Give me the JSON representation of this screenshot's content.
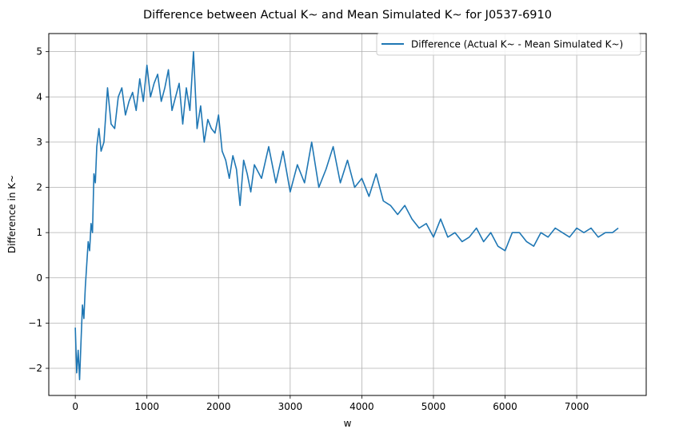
{
  "chart_data": {
    "type": "line",
    "title": "Difference between Actual K~ and Mean Simulated K~ for J0537-6910",
    "xlabel": "w",
    "ylabel": "Difference in K~",
    "xlim": [
      -370,
      7970
    ],
    "ylim": [
      -2.6,
      5.4
    ],
    "xticks": [
      0,
      1000,
      2000,
      3000,
      4000,
      5000,
      6000,
      7000
    ],
    "xtick_labels": [
      "0",
      "1000",
      "2000",
      "3000",
      "4000",
      "5000",
      "6000",
      "7000"
    ],
    "yticks": [
      -2,
      -1,
      0,
      1,
      2,
      3,
      4,
      5
    ],
    "ytick_labels": [
      "−2",
      "−1",
      "0",
      "1",
      "2",
      "3",
      "4",
      "5"
    ],
    "grid": true,
    "legend_position": "top-right",
    "series": [
      {
        "name": "Difference (Actual K~ - Mean Simulated K~)",
        "color": "#1f77b4",
        "x": [
          0,
          20,
          40,
          60,
          80,
          100,
          120,
          140,
          160,
          180,
          200,
          220,
          240,
          260,
          280,
          300,
          330,
          360,
          400,
          450,
          500,
          550,
          600,
          650,
          700,
          750,
          800,
          850,
          900,
          950,
          1000,
          1050,
          1100,
          1150,
          1200,
          1250,
          1300,
          1350,
          1400,
          1450,
          1500,
          1550,
          1600,
          1650,
          1700,
          1750,
          1800,
          1850,
          1900,
          1950,
          2000,
          2050,
          2100,
          2150,
          2200,
          2250,
          2300,
          2350,
          2400,
          2450,
          2500,
          2600,
          2700,
          2800,
          2900,
          3000,
          3100,
          3200,
          3300,
          3400,
          3500,
          3600,
          3700,
          3800,
          3900,
          4000,
          4100,
          4200,
          4300,
          4400,
          4500,
          4600,
          4700,
          4800,
          4900,
          5000,
          5100,
          5200,
          5300,
          5400,
          5500,
          5600,
          5700,
          5800,
          5900,
          6000,
          6100,
          6200,
          6300,
          6400,
          6500,
          6600,
          6700,
          6800,
          6900,
          7000,
          7100,
          7200,
          7300,
          7400,
          7500,
          7580
        ],
        "y": [
          -1.1,
          -2.1,
          -1.6,
          -2.25,
          -1.4,
          -0.6,
          -0.9,
          -0.2,
          0.3,
          0.8,
          0.6,
          1.2,
          1.0,
          2.3,
          2.1,
          2.9,
          3.3,
          2.8,
          3.0,
          4.2,
          3.4,
          3.3,
          4.0,
          4.2,
          3.6,
          3.9,
          4.1,
          3.7,
          4.4,
          3.9,
          4.7,
          4.0,
          4.3,
          4.5,
          3.9,
          4.2,
          4.6,
          3.7,
          4.0,
          4.3,
          3.4,
          4.2,
          3.7,
          5.0,
          3.3,
          3.8,
          3.0,
          3.5,
          3.3,
          3.2,
          3.6,
          2.8,
          2.6,
          2.2,
          2.7,
          2.4,
          1.6,
          2.6,
          2.3,
          1.9,
          2.5,
          2.2,
          2.9,
          2.1,
          2.8,
          1.9,
          2.5,
          2.1,
          3.0,
          2.0,
          2.4,
          2.9,
          2.1,
          2.6,
          2.0,
          2.2,
          1.8,
          2.3,
          1.7,
          1.6,
          1.4,
          1.6,
          1.3,
          1.1,
          1.2,
          0.9,
          1.3,
          0.9,
          1.0,
          0.8,
          0.9,
          1.1,
          0.8,
          1.0,
          0.7,
          0.6,
          1.0,
          1.0,
          0.8,
          0.7,
          1.0,
          0.9,
          1.1,
          1.0,
          0.9,
          1.1,
          1.0,
          1.1,
          0.9,
          1.0,
          1.0,
          1.1
        ]
      }
    ]
  }
}
